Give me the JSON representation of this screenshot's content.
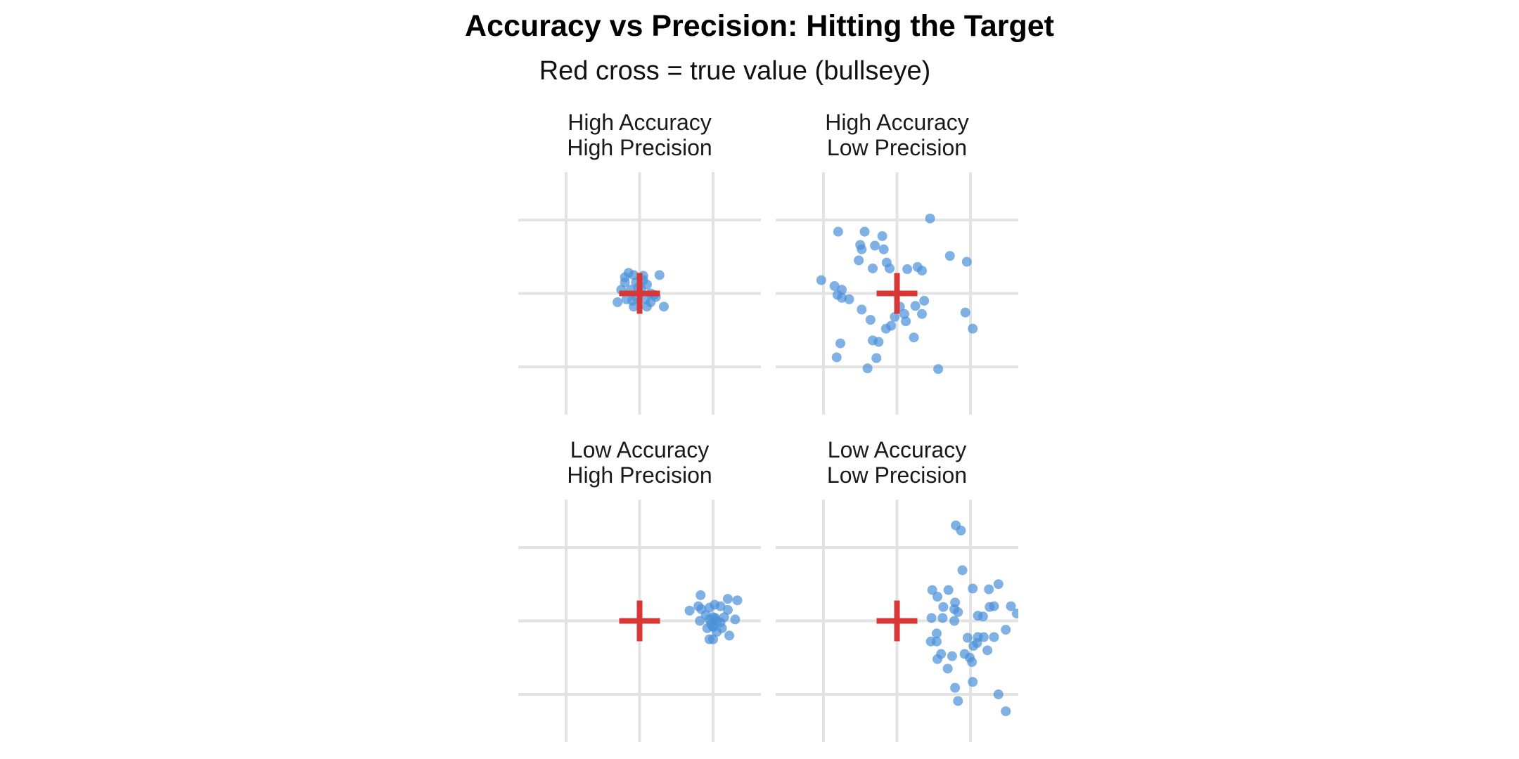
{
  "chart_data": {
    "type": "scatter",
    "title": "Accuracy vs Precision: Hitting the Target",
    "subtitle": "Red cross = true value (bullseye)",
    "xlabel": "",
    "ylabel": "",
    "xlim": [
      -1.65,
      1.65
    ],
    "ylim": [
      -1.65,
      1.65
    ],
    "grid": true,
    "grid_lines": [
      -1,
      0,
      1
    ],
    "true_value": {
      "x": 0,
      "y": 0
    },
    "colors": {
      "points": "#4a90d9",
      "target": "#d93636",
      "grid": "#e3e3e3",
      "text": "#1a1a1a"
    },
    "panels": [
      {
        "title_lines": [
          "High Accuracy",
          "High Precision"
        ],
        "points": [
          [
            -0.15,
            0.28
          ],
          [
            -0.08,
            0.25
          ],
          [
            0.05,
            0.24
          ],
          [
            0.27,
            0.25
          ],
          [
            -0.2,
            0.15
          ],
          [
            -0.05,
            0.15
          ],
          [
            0.1,
            0.12
          ],
          [
            -0.25,
            0.05
          ],
          [
            -0.12,
            0.05
          ],
          [
            0.02,
            0.06
          ],
          [
            0.15,
            0.0
          ],
          [
            0.2,
            -0.02
          ],
          [
            -0.3,
            -0.12
          ],
          [
            -0.18,
            -0.08
          ],
          [
            -0.05,
            -0.05
          ],
          [
            0.08,
            -0.08
          ],
          [
            0.22,
            -0.05
          ],
          [
            -0.08,
            -0.18
          ],
          [
            0.1,
            -0.18
          ],
          [
            0.33,
            -0.18
          ],
          [
            -0.2,
            0.22
          ],
          [
            -0.1,
            -0.1
          ],
          [
            0.05,
            0.18
          ],
          [
            0.15,
            -0.12
          ],
          [
            -0.02,
            0.08
          ]
        ]
      },
      {
        "title_lines": [
          "High Accuracy",
          "Low Precision"
        ],
        "points": [
          [
            0.45,
            1.02
          ],
          [
            -0.8,
            0.84
          ],
          [
            -0.44,
            0.84
          ],
          [
            -0.2,
            0.78
          ],
          [
            -0.5,
            0.66
          ],
          [
            -0.48,
            0.6
          ],
          [
            -0.3,
            0.65
          ],
          [
            -0.18,
            0.6
          ],
          [
            -0.52,
            0.45
          ],
          [
            -0.33,
            0.34
          ],
          [
            -0.14,
            0.42
          ],
          [
            -0.1,
            0.34
          ],
          [
            0.14,
            0.33
          ],
          [
            0.28,
            0.36
          ],
          [
            0.34,
            0.31
          ],
          [
            0.72,
            0.51
          ],
          [
            0.95,
            0.43
          ],
          [
            -1.03,
            0.18
          ],
          [
            -0.85,
            0.1
          ],
          [
            -0.75,
            0.05
          ],
          [
            -0.81,
            -0.02
          ],
          [
            -0.75,
            -0.06
          ],
          [
            -0.65,
            -0.08
          ],
          [
            0.04,
            -0.18
          ],
          [
            0.1,
            -0.28
          ],
          [
            0.25,
            -0.17
          ],
          [
            0.37,
            -0.1
          ],
          [
            0.34,
            -0.28
          ],
          [
            -0.48,
            -0.22
          ],
          [
            -0.36,
            -0.36
          ],
          [
            -0.03,
            -0.32
          ],
          [
            0.12,
            -0.38
          ],
          [
            0.93,
            -0.26
          ],
          [
            1.03,
            -0.48
          ],
          [
            -0.77,
            -0.68
          ],
          [
            -0.33,
            -0.64
          ],
          [
            -0.25,
            -0.66
          ],
          [
            -0.15,
            -0.48
          ],
          [
            -0.08,
            -0.44
          ],
          [
            0.23,
            -0.6
          ],
          [
            -0.82,
            -0.87
          ],
          [
            -0.28,
            -0.88
          ],
          [
            -0.4,
            -1.02
          ],
          [
            0.56,
            -1.03
          ]
        ]
      },
      {
        "title_lines": [
          "Low Accuracy",
          "High Precision"
        ],
        "points": [
          [
            0.83,
            0.35
          ],
          [
            1.2,
            0.3
          ],
          [
            1.33,
            0.28
          ],
          [
            0.68,
            0.14
          ],
          [
            0.8,
            0.2
          ],
          [
            0.84,
            0.16
          ],
          [
            0.95,
            0.18
          ],
          [
            1.02,
            0.22
          ],
          [
            1.1,
            0.2
          ],
          [
            1.2,
            0.15
          ],
          [
            0.9,
            0.08
          ],
          [
            0.95,
            0.02
          ],
          [
            1.0,
            0.05
          ],
          [
            1.05,
            0.0
          ],
          [
            1.1,
            -0.02
          ],
          [
            1.15,
            0.05
          ],
          [
            1.3,
            0.02
          ],
          [
            0.82,
            0.0
          ],
          [
            0.92,
            -0.1
          ],
          [
            1.0,
            -0.08
          ],
          [
            1.05,
            -0.15
          ],
          [
            1.12,
            -0.1
          ],
          [
            0.95,
            -0.25
          ],
          [
            1.0,
            -0.25
          ],
          [
            1.22,
            -0.2
          ],
          [
            1.0,
            -0.08
          ],
          [
            1.03,
            0.04
          ],
          [
            0.97,
            -0.04
          ]
        ]
      },
      {
        "title_lines": [
          "Low Accuracy",
          "Low Precision"
        ],
        "points": [
          [
            0.8,
            1.3
          ],
          [
            0.87,
            1.23
          ],
          [
            0.89,
            0.69
          ],
          [
            0.7,
            0.42
          ],
          [
            1.03,
            0.44
          ],
          [
            1.25,
            0.43
          ],
          [
            1.38,
            0.5
          ],
          [
            0.48,
            0.42
          ],
          [
            0.55,
            0.33
          ],
          [
            0.79,
            0.25
          ],
          [
            1.26,
            0.19
          ],
          [
            1.32,
            0.2
          ],
          [
            0.63,
            0.19
          ],
          [
            0.78,
            0.16
          ],
          [
            0.83,
            0.12
          ],
          [
            1.55,
            0.2
          ],
          [
            1.63,
            0.1
          ],
          [
            0.47,
            0.04
          ],
          [
            0.62,
            0.04
          ],
          [
            1.17,
            0.06
          ],
          [
            0.78,
            0.0
          ],
          [
            1.1,
            0.07
          ],
          [
            1.48,
            -0.12
          ],
          [
            0.54,
            -0.17
          ],
          [
            0.46,
            -0.28
          ],
          [
            0.54,
            -0.28
          ],
          [
            0.96,
            -0.23
          ],
          [
            1.1,
            -0.22
          ],
          [
            1.18,
            -0.22
          ],
          [
            1.32,
            -0.22
          ],
          [
            1.09,
            -0.3
          ],
          [
            1.04,
            -0.34
          ],
          [
            0.6,
            -0.45
          ],
          [
            0.92,
            -0.45
          ],
          [
            0.75,
            -0.48
          ],
          [
            0.99,
            -0.5
          ],
          [
            1.02,
            -0.56
          ],
          [
            1.23,
            -0.4
          ],
          [
            0.55,
            -0.52
          ],
          [
            0.69,
            -0.65
          ],
          [
            1.03,
            -0.83
          ],
          [
            0.79,
            -0.91
          ],
          [
            1.38,
            -1.0
          ],
          [
            0.83,
            -1.09
          ],
          [
            1.48,
            -1.23
          ]
        ]
      }
    ]
  }
}
